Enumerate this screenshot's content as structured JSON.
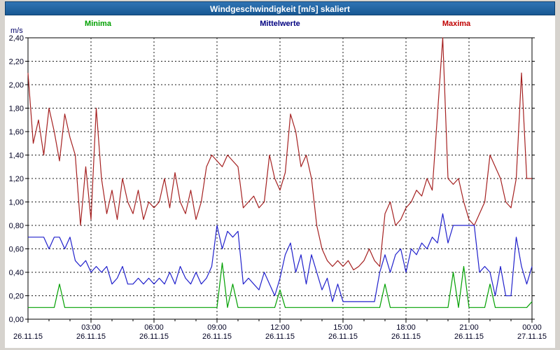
{
  "window": {
    "title": "Windgeschwindigkeit [m/s] skaliert",
    "title_bg": "#1c63a6",
    "title_fg": "#ffffff"
  },
  "legend": [
    {
      "label": "Minima",
      "color": "#00a000"
    },
    {
      "label": "Mittelwerte",
      "color": "#000080"
    },
    {
      "label": "Maxima",
      "color": "#c00000"
    }
  ],
  "chart_data": {
    "type": "line",
    "title": "Windgeschwindigkeit [m/s] skaliert",
    "ylabel": "m/s",
    "xlabel": "",
    "ylim": [
      0,
      2.4
    ],
    "ytick_step": 0.2,
    "ytick_labels": [
      "0,00",
      "0,20",
      "0,40",
      "0,60",
      "0,80",
      "1,00",
      "1,20",
      "1,40",
      "1,60",
      "1,80",
      "2,00",
      "2,20",
      "2,40"
    ],
    "x_hours_range": [
      0,
      24
    ],
    "sample_interval_minutes": 15,
    "grid": "dashed",
    "legend_position": "top",
    "axis_color": "#000022",
    "xticks": [
      {
        "hour": 0,
        "time": "",
        "date": "26.11.15"
      },
      {
        "hour": 3,
        "time": "03:00",
        "date": "26.11.15"
      },
      {
        "hour": 6,
        "time": "06:00",
        "date": "26.11.15"
      },
      {
        "hour": 9,
        "time": "09:00",
        "date": "26.11.15"
      },
      {
        "hour": 12,
        "time": "12:00",
        "date": "26.11.15"
      },
      {
        "hour": 15,
        "time": "15:00",
        "date": "26.11.15"
      },
      {
        "hour": 18,
        "time": "18:00",
        "date": "26.11.15"
      },
      {
        "hour": 21,
        "time": "21:00",
        "date": "26.11.15"
      },
      {
        "hour": 24,
        "time": "00:00",
        "date": "27.11.15"
      }
    ],
    "series": [
      {
        "name": "Maxima",
        "color": "#a52121",
        "values": [
          2.1,
          1.5,
          1.7,
          1.4,
          1.8,
          1.6,
          1.35,
          1.75,
          1.55,
          1.4,
          0.8,
          1.3,
          0.85,
          1.8,
          1.2,
          0.9,
          1.1,
          0.85,
          1.2,
          1.0,
          0.9,
          1.1,
          0.85,
          1.0,
          0.95,
          1.0,
          1.2,
          0.95,
          1.25,
          1.0,
          0.9,
          1.1,
          0.85,
          1.0,
          1.3,
          1.4,
          1.35,
          1.3,
          1.4,
          1.35,
          1.3,
          0.95,
          1.0,
          1.05,
          0.95,
          1.0,
          1.4,
          1.2,
          1.1,
          1.25,
          1.75,
          1.6,
          1.3,
          1.4,
          1.2,
          0.8,
          0.6,
          0.5,
          0.45,
          0.5,
          0.45,
          0.5,
          0.42,
          0.45,
          0.5,
          0.6,
          0.5,
          0.45,
          0.9,
          1.0,
          0.8,
          0.85,
          0.95,
          1.0,
          1.1,
          1.05,
          1.2,
          1.1,
          1.75,
          2.4,
          1.2,
          1.15,
          1.2,
          1.0,
          0.85,
          0.8,
          0.9,
          1.0,
          1.4,
          1.3,
          1.2,
          1.0,
          0.95,
          1.2,
          2.1,
          1.2,
          1.2
        ]
      },
      {
        "name": "Mittelwerte",
        "color": "#2121cc",
        "values": [
          0.7,
          0.7,
          0.7,
          0.7,
          0.6,
          0.7,
          0.7,
          0.6,
          0.7,
          0.5,
          0.45,
          0.5,
          0.4,
          0.45,
          0.4,
          0.45,
          0.3,
          0.35,
          0.45,
          0.3,
          0.3,
          0.35,
          0.3,
          0.35,
          0.3,
          0.35,
          0.3,
          0.4,
          0.3,
          0.45,
          0.35,
          0.3,
          0.4,
          0.3,
          0.35,
          0.45,
          0.8,
          0.6,
          0.75,
          0.7,
          0.75,
          0.3,
          0.35,
          0.3,
          0.25,
          0.4,
          0.3,
          0.2,
          0.35,
          0.55,
          0.65,
          0.4,
          0.55,
          0.3,
          0.55,
          0.4,
          0.25,
          0.35,
          0.15,
          0.3,
          0.15,
          0.15,
          0.15,
          0.15,
          0.15,
          0.15,
          0.15,
          0.4,
          0.55,
          0.4,
          0.55,
          0.6,
          0.4,
          0.6,
          0.55,
          0.65,
          0.6,
          0.7,
          0.65,
          0.9,
          0.65,
          0.8,
          0.8,
          0.8,
          0.8,
          0.8,
          0.4,
          0.45,
          0.4,
          0.2,
          0.45,
          0.2,
          0.2,
          0.7,
          0.45,
          0.3,
          0.45
        ]
      },
      {
        "name": "Minima",
        "color": "#00a000",
        "values": [
          0.1,
          0.1,
          0.1,
          0.1,
          0.1,
          0.1,
          0.3,
          0.1,
          0.1,
          0.1,
          0.1,
          0.1,
          0.1,
          0.1,
          0.1,
          0.1,
          0.1,
          0.1,
          0.1,
          0.1,
          0.1,
          0.1,
          0.1,
          0.1,
          0.1,
          0.1,
          0.1,
          0.1,
          0.1,
          0.1,
          0.1,
          0.1,
          0.1,
          0.1,
          0.1,
          0.1,
          0.1,
          0.48,
          0.1,
          0.3,
          0.1,
          0.1,
          0.1,
          0.1,
          0.1,
          0.1,
          0.1,
          0.1,
          0.25,
          0.1,
          0.1,
          0.1,
          0.1,
          0.1,
          0.1,
          0.1,
          0.1,
          0.1,
          0.1,
          0.1,
          0.1,
          0.1,
          0.1,
          0.1,
          0.1,
          0.1,
          0.1,
          0.1,
          0.3,
          0.1,
          0.1,
          0.1,
          0.1,
          0.1,
          0.1,
          0.1,
          0.1,
          0.1,
          0.1,
          0.1,
          0.1,
          0.4,
          0.1,
          0.45,
          0.1,
          0.1,
          0.1,
          0.1,
          0.3,
          0.1,
          0.1,
          0.1,
          0.1,
          0.1,
          0.1,
          0.1,
          0.15
        ]
      }
    ]
  }
}
